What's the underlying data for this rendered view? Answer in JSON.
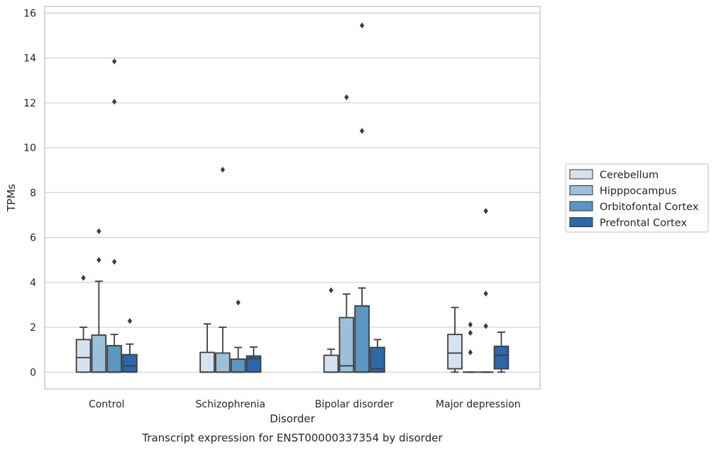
{
  "chart_data": {
    "type": "box",
    "title": "",
    "caption": "Transcript expression for ENST00000337354 by disorder",
    "xlabel": "Disorder",
    "ylabel": "TPMs",
    "ylim": [
      -0.75,
      16.3
    ],
    "yticks": [
      0,
      2,
      4,
      6,
      8,
      10,
      12,
      14,
      16
    ],
    "categories": [
      "Control",
      "Schizophrenia",
      "Bipolar disorder",
      "Major depression"
    ],
    "grid": "horizontal",
    "legend_position": "right",
    "series": [
      {
        "name": "Cerebellum",
        "color": "#d5e3f1",
        "boxes": [
          {
            "whislo": 0,
            "q1": 0,
            "med": 0.65,
            "q3": 1.45,
            "whishi": 2.0,
            "fliers": [
              4.2
            ]
          },
          {
            "whislo": 0,
            "q1": 0,
            "med": 0.0,
            "q3": 0.88,
            "whishi": 2.15,
            "fliers": []
          },
          {
            "whislo": 0,
            "q1": 0,
            "med": 0.0,
            "q3": 0.75,
            "whishi": 1.02,
            "fliers": [
              3.65
            ]
          },
          {
            "whislo": 0,
            "q1": 0.15,
            "med": 0.85,
            "q3": 1.68,
            "whishi": 2.88,
            "fliers": []
          }
        ]
      },
      {
        "name": "Hipppocampus",
        "color": "#9bc0d9",
        "boxes": [
          {
            "whislo": 0,
            "q1": 0,
            "med": 0.0,
            "q3": 1.65,
            "whishi": 4.05,
            "fliers": [
              5.0,
              6.28
            ]
          },
          {
            "whislo": 0,
            "q1": 0,
            "med": 0.0,
            "q3": 0.85,
            "whishi": 2.0,
            "fliers": [
              9.02
            ]
          },
          {
            "whislo": 0,
            "q1": 0,
            "med": 0.28,
            "q3": 2.43,
            "whishi": 3.48,
            "fliers": [
              12.25
            ]
          },
          {
            "whislo": 0,
            "q1": 0,
            "med": 0.0,
            "q3": 0.0,
            "whishi": 0.0,
            "fliers": [
              0.88,
              1.75,
              2.12
            ]
          }
        ]
      },
      {
        "name": "Orbitofontal Cortex",
        "color": "#5a98c3",
        "boxes": [
          {
            "whislo": 0,
            "q1": 0,
            "med": 0.0,
            "q3": 1.18,
            "whishi": 1.68,
            "fliers": [
              4.92,
              12.05,
              13.85
            ]
          },
          {
            "whislo": 0,
            "q1": 0,
            "med": 0.0,
            "q3": 0.58,
            "whishi": 1.1,
            "fliers": [
              3.1
            ]
          },
          {
            "whislo": 0,
            "q1": 0,
            "med": 0.0,
            "q3": 2.95,
            "whishi": 3.75,
            "fliers": [
              10.75,
              15.45
            ]
          },
          {
            "whislo": 0,
            "q1": 0,
            "med": 0.0,
            "q3": 0.0,
            "whishi": 0.0,
            "fliers": [
              2.05,
              3.5,
              7.18
            ]
          }
        ]
      },
      {
        "name": "Prefrontal Cortex",
        "color": "#2a68aa",
        "boxes": [
          {
            "whislo": 0,
            "q1": 0,
            "med": 0.28,
            "q3": 0.78,
            "whishi": 1.25,
            "fliers": [
              2.28
            ]
          },
          {
            "whislo": 0,
            "q1": 0,
            "med": 0.6,
            "q3": 0.72,
            "whishi": 1.12,
            "fliers": []
          },
          {
            "whislo": 0,
            "q1": 0,
            "med": 0.15,
            "q3": 1.1,
            "whishi": 1.45,
            "fliers": []
          },
          {
            "whislo": 0,
            "q1": 0.15,
            "med": 0.75,
            "q3": 1.15,
            "whishi": 1.78,
            "fliers": []
          }
        ]
      }
    ]
  }
}
